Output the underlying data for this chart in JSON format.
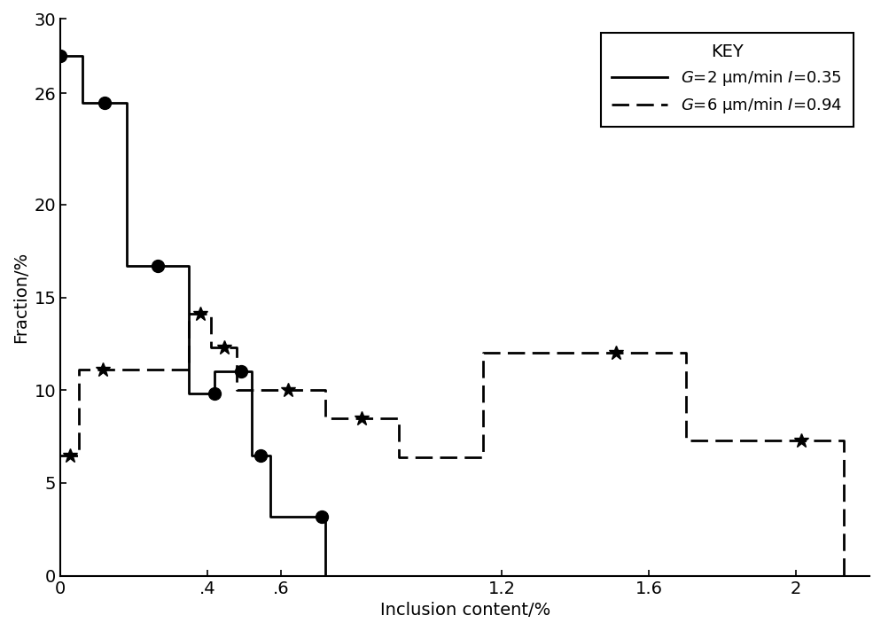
{
  "solid_x": [
    0.0,
    0.06,
    0.06,
    0.18,
    0.18,
    0.35,
    0.35,
    0.42,
    0.42,
    0.46,
    0.46,
    0.52,
    0.52,
    0.57,
    0.57,
    0.7,
    0.7,
    0.72,
    0.72,
    1.1
  ],
  "solid_y": [
    28.0,
    28.0,
    25.5,
    25.5,
    16.7,
    16.7,
    9.8,
    9.8,
    11.0,
    11.0,
    11.0,
    11.0,
    6.5,
    6.5,
    3.2,
    3.2,
    3.2,
    3.2,
    0.0,
    0.0
  ],
  "solid_mx": [
    0.0,
    0.12,
    0.265,
    0.42,
    0.49,
    0.545,
    0.71
  ],
  "solid_my": [
    28.0,
    25.5,
    16.7,
    9.8,
    11.0,
    6.5,
    3.2
  ],
  "dashed_x": [
    0.0,
    0.05,
    0.05,
    0.18,
    0.18,
    0.35,
    0.35,
    0.41,
    0.41,
    0.48,
    0.48,
    0.56,
    0.56,
    0.72,
    0.72,
    0.92,
    0.92,
    1.05,
    1.05,
    1.15,
    1.15,
    1.32,
    1.32,
    1.7,
    1.7,
    1.9,
    1.9,
    2.13,
    2.13
  ],
  "dashed_y": [
    6.5,
    6.5,
    11.1,
    11.1,
    11.1,
    11.1,
    14.1,
    14.1,
    12.3,
    12.3,
    10.0,
    10.0,
    10.0,
    10.0,
    8.5,
    8.5,
    6.4,
    6.4,
    6.4,
    6.4,
    12.0,
    12.0,
    12.0,
    12.0,
    7.3,
    7.3,
    7.3,
    7.3,
    0.0
  ],
  "dashed_mx": [
    0.025,
    0.115,
    0.38,
    0.445,
    0.62,
    0.82,
    1.51,
    2.015
  ],
  "dashed_my": [
    6.5,
    11.1,
    14.1,
    12.3,
    10.0,
    8.5,
    12.0,
    7.3
  ],
  "xlabel": "Inclusion content/%",
  "ylabel": "Fraction/%",
  "xlim": [
    0,
    2.2
  ],
  "ylim": [
    0,
    30
  ],
  "yticks": [
    0,
    5,
    10,
    15,
    20,
    26,
    30
  ],
  "ytick_labels": [
    "0",
    "5",
    "10",
    "15",
    "20",
    "26",
    "30"
  ],
  "xticks": [
    0.0,
    0.4,
    0.6,
    1.2,
    1.6,
    2.0
  ],
  "xtick_labels": [
    "0",
    ".4",
    ".6",
    "1.2",
    "1.6",
    "2"
  ],
  "legend_title": "KEY",
  "legend_solid": "$G$=2 μm/min $I$=0.35",
  "legend_dashed": "$G$=6 μm/min $I$=0.94",
  "line_color": "#000000",
  "fontsize": 14,
  "marker_size": 10,
  "lw": 2.0
}
